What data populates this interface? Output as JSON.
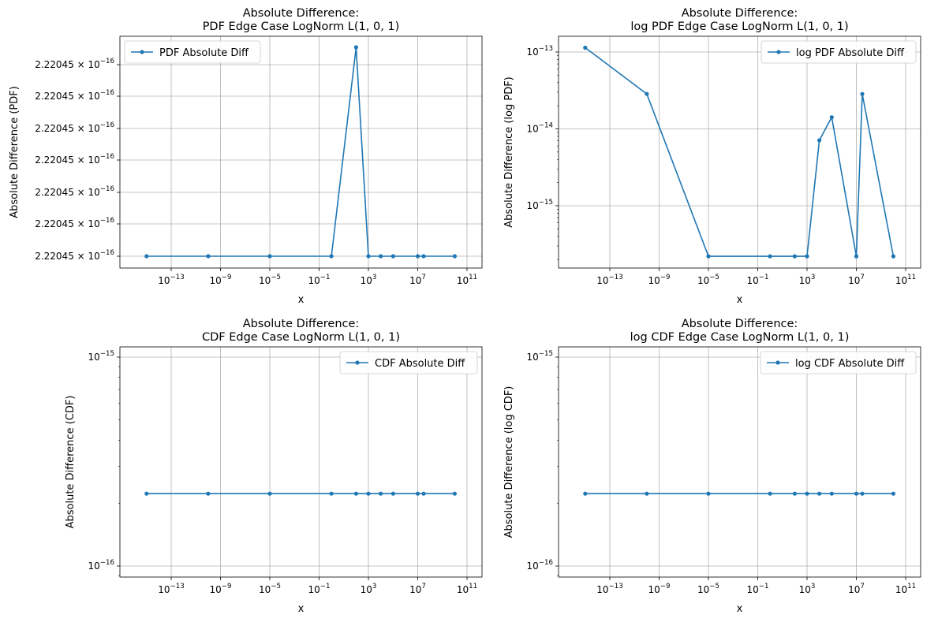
{
  "colors": {
    "line": "#1f77b4",
    "grid": "#b0b0b0",
    "axes": "#000000"
  },
  "chart_data": [
    {
      "type": "line",
      "title": "Absolute Difference:\nPDF Edge Case LogNorm L(1, 0, 1)",
      "xlabel": "x",
      "ylabel": "Absolute Difference (PDF)",
      "xscale": "log",
      "yscale": "linear",
      "grid": true,
      "legend_position": "upper left",
      "xticks": [
        "10^-13",
        "10^-9",
        "10^-5",
        "10^-1",
        "10^3",
        "10^7",
        "10^11"
      ],
      "yticks": [
        "2.22045 × 10^-16",
        "2.22045 × 10^-16",
        "2.22045 × 10^-16",
        "2.22045 × 10^-16",
        "2.22045 × 10^-16",
        "2.22045 × 10^-16",
        "2.22045 × 10^-16"
      ],
      "series": [
        {
          "name": "PDF Absolute Diff",
          "x": [
            1e-15,
            1e-10,
            1e-05,
            1,
            100,
            1000,
            10000,
            100000,
            10000000,
            30000000,
            10000000000.0
          ],
          "y": [
            2.220446049250313e-16,
            2.220446049250313e-16,
            2.220446049250313e-16,
            2.220446049250313e-16,
            2.220446049250333e-16,
            2.220446049250313e-16,
            2.220446049250313e-16,
            2.220446049250313e-16,
            2.220446049250313e-16,
            2.220446049250313e-16,
            2.220446049250313e-16
          ]
        }
      ]
    },
    {
      "type": "line",
      "title": "Absolute Difference:\nlog PDF Edge Case LogNorm L(1, 0, 1)",
      "xlabel": "x",
      "ylabel": "Absolute Difference (log PDF)",
      "xscale": "log",
      "yscale": "log",
      "grid": true,
      "legend_position": "upper right",
      "xticks": [
        "10^-13",
        "10^-9",
        "10^-5",
        "10^-1",
        "10^3",
        "10^7",
        "10^11"
      ],
      "yticks": [
        "10^-13",
        "10^-14",
        "10^-15"
      ],
      "series": [
        {
          "name": "log PDF Absolute Diff",
          "x": [
            1e-15,
            1e-10,
            1e-05,
            1,
            100,
            1000,
            10000,
            100000,
            10000000,
            30000000,
            10000000000.0
          ],
          "y": [
            1.14e-13,
            2.85e-14,
            2.2e-16,
            2.2e-16,
            2.2e-16,
            2.2e-16,
            7.1e-15,
            1.42e-14,
            2.2e-16,
            2.85e-14,
            2.2e-16
          ]
        }
      ]
    },
    {
      "type": "line",
      "title": "Absolute Difference:\nCDF Edge Case LogNorm L(1, 0, 1)",
      "xlabel": "x",
      "ylabel": "Absolute Difference (CDF)",
      "xscale": "log",
      "yscale": "log",
      "grid": true,
      "legend_position": "upper right",
      "xticks": [
        "10^-13",
        "10^-9",
        "10^-5",
        "10^-1",
        "10^3",
        "10^7",
        "10^11"
      ],
      "yticks": [
        "10^-15",
        "10^-16"
      ],
      "series": [
        {
          "name": "CDF Absolute Diff",
          "x": [
            1e-15,
            1e-10,
            1e-05,
            1,
            100,
            1000,
            10000,
            100000,
            10000000,
            30000000,
            10000000000.0
          ],
          "y": [
            2.22e-16,
            2.22e-16,
            2.22e-16,
            2.22e-16,
            2.22e-16,
            2.22e-16,
            2.22e-16,
            2.22e-16,
            2.22e-16,
            2.22e-16,
            2.22e-16
          ]
        }
      ]
    },
    {
      "type": "line",
      "title": "Absolute Difference:\nlog CDF Edge Case LogNorm L(1, 0, 1)",
      "xlabel": "x",
      "ylabel": "Absolute Difference (log CDF)",
      "xscale": "log",
      "yscale": "log",
      "grid": true,
      "legend_position": "upper right",
      "xticks": [
        "10^-13",
        "10^-9",
        "10^-5",
        "10^-1",
        "10^3",
        "10^7",
        "10^11"
      ],
      "yticks": [
        "10^-15",
        "10^-16"
      ],
      "series": [
        {
          "name": "log CDF Absolute Diff",
          "x": [
            1e-15,
            1e-10,
            1e-05,
            1,
            100,
            1000,
            10000,
            100000,
            10000000,
            30000000,
            10000000000.0
          ],
          "y": [
            2.22e-16,
            2.22e-16,
            2.22e-16,
            2.22e-16,
            2.22e-16,
            2.22e-16,
            2.22e-16,
            2.22e-16,
            2.22e-16,
            2.22e-16,
            2.22e-16
          ]
        }
      ]
    }
  ]
}
